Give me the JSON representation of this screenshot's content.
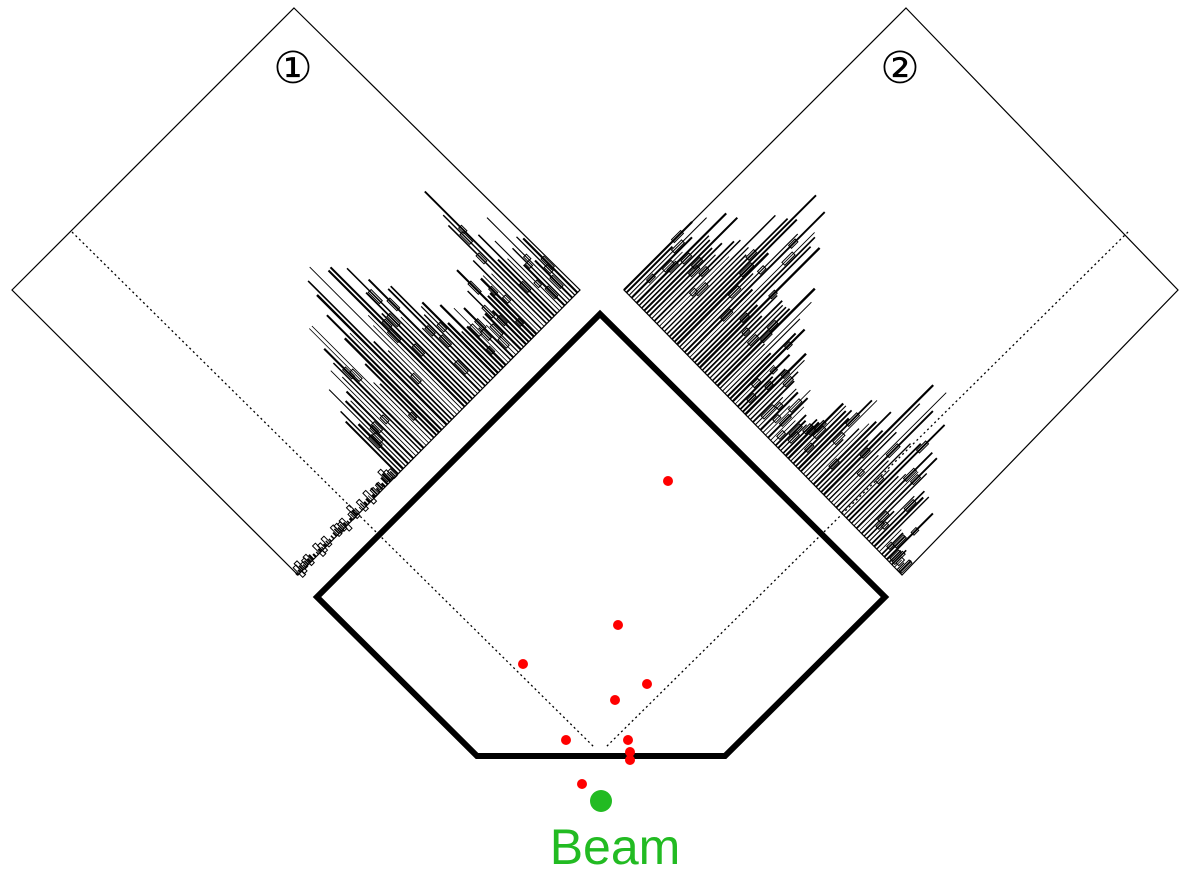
{
  "panels": [
    {
      "id": "1",
      "label": "①"
    },
    {
      "id": "2",
      "label": "②"
    }
  ],
  "beam": {
    "label": "Beam",
    "color": "#22bb22"
  },
  "hit_color": "#ff0000",
  "outline_color": "#000000"
}
